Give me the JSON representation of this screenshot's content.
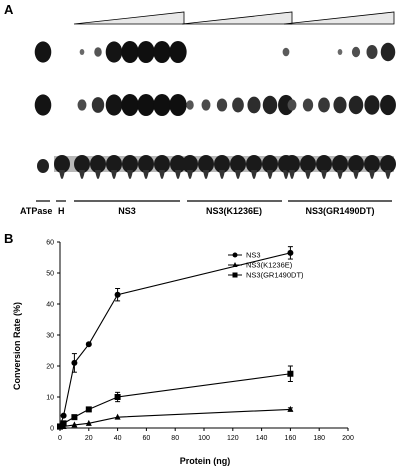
{
  "panel_a": {
    "letter": "A",
    "lane_labels": [
      "ATPase",
      "H",
      "NS3",
      "NS3(K1236E)",
      "NS3(GR1490DT)"
    ],
    "group_lane_counts": [
      7,
      7,
      7
    ],
    "row_intensity": {
      "top": [
        [
          0.05,
          0.25,
          0.9,
          0.95,
          0.95,
          0.95,
          0.95
        ],
        [
          0.0,
          0.0,
          0.0,
          0.0,
          0.0,
          0.0,
          0.2
        ],
        [
          0.0,
          0.0,
          0.0,
          0.05,
          0.3,
          0.5,
          0.75
        ]
      ],
      "middle": [
        [
          0.35,
          0.6,
          0.9,
          0.95,
          0.95,
          0.95,
          0.95
        ],
        [
          0.25,
          0.35,
          0.45,
          0.55,
          0.65,
          0.75,
          0.85
        ],
        [
          0.35,
          0.45,
          0.55,
          0.65,
          0.75,
          0.8,
          0.85
        ]
      ]
    },
    "marker_intensity": {
      "top": 0.9,
      "middle": 0.9,
      "bottom": 0.8
    }
  },
  "panel_b": {
    "letter": "B",
    "chart_data": {
      "type": "line",
      "xlabel": "Protein (ng)",
      "ylabel": "Conversion Rate (%)",
      "xlim": [
        0,
        200
      ],
      "ylim": [
        0,
        60
      ],
      "xticks": [
        0,
        20,
        40,
        60,
        80,
        100,
        120,
        140,
        160,
        180,
        200
      ],
      "yticks": [
        0,
        10,
        20,
        30,
        40,
        50,
        60
      ],
      "grid": false,
      "legend_position": "top-right",
      "series": [
        {
          "name": "NS3",
          "marker": "circle",
          "x": [
            0,
            2.5,
            10,
            20,
            40,
            160
          ],
          "y": [
            0.5,
            4,
            21,
            27,
            43,
            56.5
          ],
          "err": [
            0,
            0,
            3,
            0,
            2,
            2
          ]
        },
        {
          "name": "NS3(K1236E)",
          "marker": "triangle",
          "x": [
            0,
            2.5,
            10,
            20,
            40,
            160
          ],
          "y": [
            0.3,
            0.5,
            1,
            1.5,
            3.5,
            6
          ],
          "err": [
            0,
            0,
            0,
            0,
            0,
            0.5
          ]
        },
        {
          "name": "NS3(GR1490DT)",
          "marker": "square",
          "x": [
            0,
            2.5,
            10,
            20,
            40,
            160
          ],
          "y": [
            0.5,
            1.5,
            3.5,
            6,
            10,
            17.5
          ],
          "err": [
            0,
            0,
            0,
            0,
            1.5,
            2.5
          ]
        }
      ]
    }
  }
}
